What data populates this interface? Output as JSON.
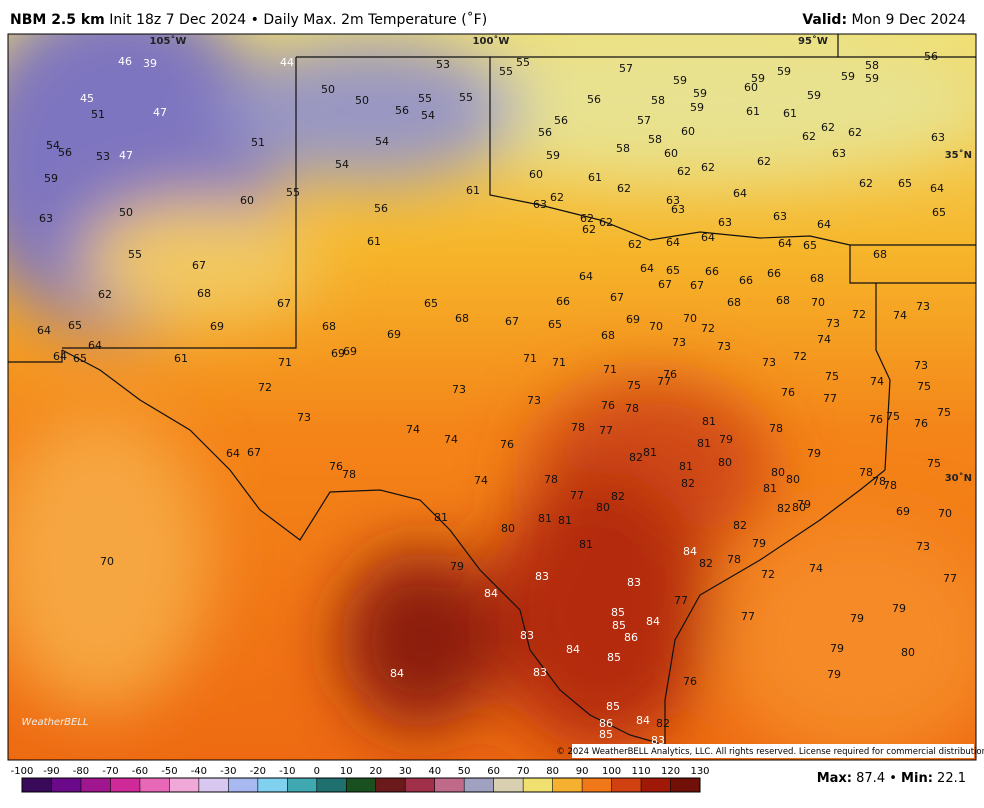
{
  "header": {
    "model": "NBM 2.5 km",
    "description": "Init 18z 7 Dec 2024 • Daily Max. 2m Temperature (˚F)",
    "valid_label": "Valid:",
    "valid_date": "Mon 9 Dec 2024"
  },
  "map": {
    "grid_labels": [
      "105˚W",
      "100˚W",
      "95˚W",
      "35˚N",
      "30˚N"
    ],
    "temperature_labels": [
      46,
      39,
      45,
      51,
      47,
      51,
      54,
      56,
      53,
      47,
      59,
      63,
      50,
      55,
      67,
      62,
      68,
      69,
      64,
      65,
      64,
      64,
      65,
      61,
      60,
      55,
      67,
      44,
      50,
      50,
      56,
      55,
      54,
      55,
      53,
      54,
      54,
      56,
      61,
      61,
      55,
      55,
      56,
      57,
      56,
      56,
      59,
      60,
      63,
      62,
      61,
      62,
      62,
      62,
      62,
      62,
      63,
      63,
      62,
      58,
      57,
      58,
      58,
      60,
      60,
      59,
      59,
      59,
      62,
      64,
      60,
      59,
      59,
      61,
      61,
      59,
      62,
      62,
      62,
      63,
      62,
      63,
      64,
      64,
      63,
      64,
      64,
      65,
      59,
      58,
      59,
      56,
      63,
      62,
      65,
      64,
      65,
      68,
      64,
      65,
      66,
      64,
      67,
      67,
      66,
      66,
      68,
      67,
      66,
      68,
      68,
      70,
      72,
      73,
      74,
      74,
      73,
      65,
      68,
      67,
      65,
      68,
      69,
      70,
      70,
      72,
      73,
      73,
      68,
      69,
      69,
      69,
      71,
      72,
      73,
      71,
      71,
      71,
      73,
      73,
      75,
      77,
      76,
      73,
      72,
      75,
      74,
      73,
      75,
      75,
      76,
      77,
      76,
      78,
      76,
      76,
      75,
      74,
      74,
      76,
      78,
      77,
      81,
      79,
      81,
      78,
      79,
      81,
      82,
      81,
      80,
      80,
      80,
      82,
      81,
      79,
      82,
      80,
      78,
      78,
      78,
      75,
      64,
      67,
      76,
      78,
      74,
      78,
      77,
      82,
      80,
      81,
      80,
      81,
      81,
      82,
      81,
      84,
      82,
      78,
      79,
      72,
      74,
      69,
      70,
      73,
      77,
      79,
      83,
      83,
      84,
      85,
      85,
      84,
      86,
      77,
      77,
      79,
      79,
      79,
      80,
      79,
      83,
      84,
      85,
      83,
      84,
      76,
      85,
      84,
      82,
      86,
      85,
      83,
      70
    ],
    "logo": "WeatherBELL",
    "copyright": "© 2024 WeatherBELL Analytics, LLC. All rights reserved. License required for commercial distribution."
  },
  "colorbar": {
    "ticks": [
      -100,
      -90,
      -80,
      -70,
      -60,
      -50,
      -40,
      -30,
      -20,
      -10,
      0,
      10,
      20,
      30,
      40,
      50,
      60,
      70,
      80,
      90,
      100,
      110,
      120,
      130
    ]
  },
  "stats": {
    "max_label": "Max:",
    "max": 87.4,
    "separator": "•",
    "min_label": "Min:",
    "min": 22.1
  }
}
